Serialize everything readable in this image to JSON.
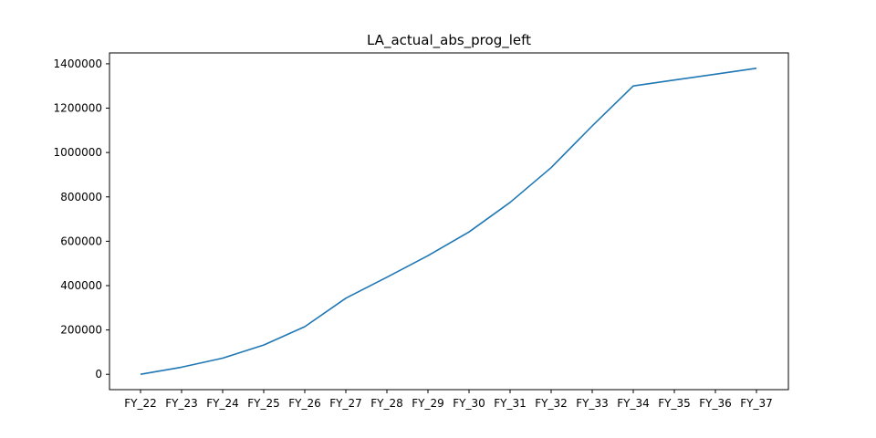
{
  "chart_data": {
    "type": "line",
    "title": "LA_actual_abs_prog_left",
    "xlabel": "",
    "ylabel": "",
    "categories": [
      "FY_22",
      "FY_23",
      "FY_24",
      "FY_25",
      "FY_26",
      "FY_27",
      "FY_28",
      "FY_29",
      "FY_30",
      "FY_31",
      "FY_32",
      "FY_33",
      "FY_34",
      "FY_35",
      "FY_36",
      "FY_37"
    ],
    "series": [
      {
        "color": "#1f77b4",
        "values": [
          0,
          32000,
          73000,
          132000,
          215000,
          343000,
          438000,
          535000,
          642000,
          775000,
          932000,
          1120000,
          1300000,
          1327000,
          1353000,
          1380000
        ]
      }
    ],
    "yticks": [
      0,
      200000,
      400000,
      600000,
      800000,
      1000000,
      1200000,
      1400000
    ],
    "ylim": [
      -69000,
      1449000
    ],
    "grid": false,
    "legend": "none"
  }
}
